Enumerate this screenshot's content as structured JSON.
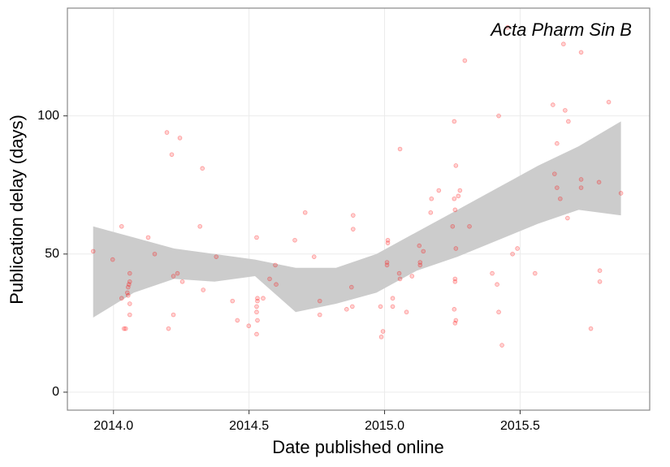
{
  "chart_data": {
    "type": "scatter",
    "annotation": "Acta Pharm Sin B",
    "x_label": "Date published online",
    "y_label": "Publication delay (days)",
    "xlim": [
      2013.83,
      2015.978
    ],
    "ylim": [
      -6.5,
      139
    ],
    "xticks": [
      {
        "value": 2014,
        "label": "2014.0"
      },
      {
        "value": 2014.5,
        "label": "2014.5"
      },
      {
        "value": 2015,
        "label": "2015.0"
      },
      {
        "value": 2015.5,
        "label": "2015.5"
      }
    ],
    "yticks": [
      0,
      50,
      100
    ],
    "grid": true,
    "series": [
      {
        "type": "scatter",
        "color": "#ff0000",
        "x": [
          2013.925,
          2013.997,
          2014.03,
          2014.03,
          2014.039,
          2014.045,
          2014.054,
          2014.054,
          2014.057,
          2014.06,
          2014.06,
          2014.06,
          2014.06,
          2014.051,
          2014.128,
          2014.152,
          2014.197,
          2014.203,
          2014.215,
          2014.221,
          2014.221,
          2014.236,
          2014.245,
          2014.254,
          2014.328,
          2014.319,
          2014.331,
          2014.379,
          2014.439,
          2014.457,
          2014.499,
          2014.528,
          2014.528,
          2014.531,
          2014.528,
          2014.528,
          2014.531,
          2014.531,
          2014.552,
          2014.576,
          2014.597,
          2014.6,
          2014.669,
          2014.707,
          2014.74,
          2014.761,
          2014.761,
          2014.86,
          2014.878,
          2014.884,
          2014.884,
          2014.881,
          2014.985,
          2014.988,
          2014.994,
          2015.009,
          2015.009,
          2015.012,
          2015.012,
          2015.03,
          2015.03,
          2015.054,
          2015.057,
          2015.057,
          2015.081,
          2015.101,
          2015.128,
          2015.131,
          2015.131,
          2015.143,
          2015.17,
          2015.173,
          2015.2,
          2015.251,
          2015.257,
          2015.257,
          2015.263,
          2015.26,
          2015.26,
          2015.26,
          2015.257,
          2015.263,
          2015.26,
          2015.263,
          2015.272,
          2015.278,
          2015.296,
          2015.313,
          2015.397,
          2015.415,
          2015.421,
          2015.421,
          2015.433,
          2015.454,
          2015.472,
          2015.49,
          2015.555,
          2015.621,
          2015.627,
          2015.636,
          2015.636,
          2015.648,
          2015.66,
          2015.666,
          2015.675,
          2015.678,
          2015.725,
          2015.725,
          2015.725,
          2015.761,
          2015.791,
          2015.794,
          2015.794,
          2015.827,
          2015.872
        ],
        "values": [
          51,
          48,
          60,
          34,
          23,
          23,
          35,
          38,
          39,
          43,
          40,
          32,
          28,
          36,
          56,
          50,
          94,
          23,
          86,
          28,
          42,
          43,
          92,
          40,
          81,
          60,
          37,
          49,
          33,
          26,
          24,
          56,
          21,
          34,
          31,
          29,
          26,
          33,
          34,
          41,
          46,
          39,
          55,
          65,
          49,
          28,
          33,
          30,
          38,
          64,
          59,
          31,
          31,
          20,
          22,
          46,
          47,
          55,
          54,
          31,
          34,
          43,
          41,
          88,
          29,
          42,
          53,
          46,
          47,
          51,
          65,
          70,
          73,
          60,
          98,
          70,
          82,
          66,
          40,
          41,
          30,
          26,
          25,
          52,
          71,
          73,
          120,
          60,
          43,
          39,
          100,
          29,
          17,
          132,
          50,
          52,
          43,
          104,
          79,
          90,
          74,
          70,
          126,
          102,
          63,
          98,
          123,
          77,
          74,
          23,
          76,
          44,
          40,
          105,
          72
        ]
      },
      {
        "type": "ribbon",
        "color": "#cccccc",
        "x": [
          2013.925,
          2014.075,
          2014.224,
          2014.373,
          2014.522,
          2014.672,
          2014.821,
          2014.97,
          2015.119,
          2015.269,
          2015.418,
          2015.567,
          2015.716,
          2015.872
        ],
        "lower": [
          27,
          36,
          41,
          40,
          42,
          29,
          32,
          36,
          44,
          49,
          55,
          61,
          66,
          64
        ],
        "upper": [
          60,
          56,
          52,
          50,
          48,
          45,
          45,
          50,
          58,
          66,
          74,
          82,
          89,
          98
        ]
      }
    ]
  }
}
